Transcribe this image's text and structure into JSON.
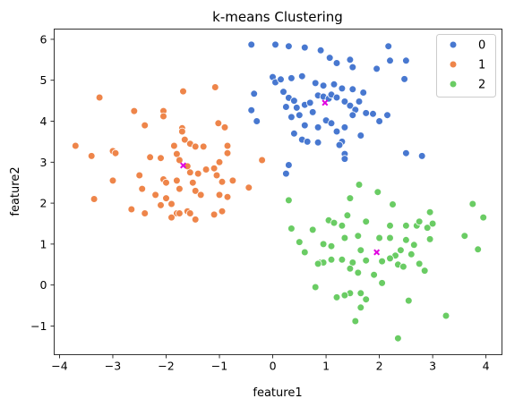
{
  "chart_data": {
    "type": "scatter",
    "title": "k-means Clustering",
    "xlabel": "feature1",
    "ylabel": "feature2",
    "xlim": [
      -4.1,
      4.3
    ],
    "ylim": [
      -1.7,
      6.25
    ],
    "xticks": [
      -4,
      -3,
      -2,
      -1,
      0,
      1,
      2,
      3,
      4
    ],
    "yticks": [
      -1,
      0,
      1,
      2,
      3,
      4,
      5,
      6
    ],
    "grid": false,
    "legend_position": "top-right",
    "centroid_color": "#e000e0",
    "series": [
      {
        "name": "0",
        "color": "#4878d0",
        "points": [
          [
            -0.4,
            5.87
          ],
          [
            0.05,
            5.87
          ],
          [
            0.3,
            5.83
          ],
          [
            0.6,
            5.8
          ],
          [
            0.9,
            5.73
          ],
          [
            1.07,
            5.55
          ],
          [
            1.2,
            5.42
          ],
          [
            1.45,
            5.5
          ],
          [
            1.5,
            5.32
          ],
          [
            2.17,
            5.83
          ],
          [
            2.2,
            5.48
          ],
          [
            2.5,
            5.48
          ],
          [
            1.95,
            5.28
          ],
          [
            0.0,
            5.08
          ],
          [
            0.05,
            4.95
          ],
          [
            0.15,
            5.02
          ],
          [
            0.35,
            5.05
          ],
          [
            0.55,
            5.1
          ],
          [
            0.8,
            4.93
          ],
          [
            0.95,
            4.87
          ],
          [
            1.15,
            4.9
          ],
          [
            1.3,
            4.8
          ],
          [
            1.5,
            4.78
          ],
          [
            1.7,
            4.7
          ],
          [
            2.47,
            5.03
          ],
          [
            -0.35,
            4.67
          ],
          [
            0.2,
            4.72
          ],
          [
            0.3,
            4.57
          ],
          [
            0.4,
            4.5
          ],
          [
            0.45,
            4.33
          ],
          [
            0.6,
            4.4
          ],
          [
            0.7,
            4.45
          ],
          [
            0.85,
            4.63
          ],
          [
            0.95,
            4.6
          ],
          [
            1.05,
            4.55
          ],
          [
            1.1,
            4.65
          ],
          [
            1.2,
            4.58
          ],
          [
            1.35,
            4.48
          ],
          [
            1.45,
            4.38
          ],
          [
            1.55,
            4.28
          ],
          [
            1.62,
            4.48
          ],
          [
            1.75,
            4.2
          ],
          [
            1.88,
            4.18
          ],
          [
            2.15,
            4.15
          ],
          [
            -0.4,
            4.27
          ],
          [
            -0.3,
            4.0
          ],
          [
            0.25,
            4.35
          ],
          [
            0.35,
            4.1
          ],
          [
            0.5,
            4.15
          ],
          [
            0.6,
            3.9
          ],
          [
            0.75,
            4.22
          ],
          [
            0.85,
            3.85
          ],
          [
            1.0,
            4.02
          ],
          [
            1.1,
            3.95
          ],
          [
            1.2,
            3.75
          ],
          [
            1.3,
            3.5
          ],
          [
            1.35,
            3.85
          ],
          [
            1.5,
            4.15
          ],
          [
            1.65,
            3.65
          ],
          [
            2.0,
            4.0
          ],
          [
            0.4,
            3.7
          ],
          [
            0.55,
            3.55
          ],
          [
            0.65,
            3.5
          ],
          [
            0.85,
            3.48
          ],
          [
            1.25,
            3.42
          ],
          [
            1.35,
            3.2
          ],
          [
            1.35,
            3.08
          ],
          [
            2.5,
            3.22
          ],
          [
            2.8,
            3.15
          ],
          [
            0.3,
            2.93
          ],
          [
            0.25,
            2.72
          ]
        ],
        "centroid": [
          0.98,
          4.45
        ]
      },
      {
        "name": "1",
        "color": "#ee854a",
        "points": [
          [
            -3.25,
            4.58
          ],
          [
            -1.68,
            4.73
          ],
          [
            -1.08,
            4.83
          ],
          [
            -2.6,
            4.25
          ],
          [
            -2.05,
            4.25
          ],
          [
            -2.05,
            4.12
          ],
          [
            -2.4,
            3.9
          ],
          [
            -1.7,
            3.83
          ],
          [
            -1.7,
            3.75
          ],
          [
            -1.02,
            3.95
          ],
          [
            -0.9,
            3.85
          ],
          [
            -3.7,
            3.4
          ],
          [
            -3.4,
            3.15
          ],
          [
            -3.0,
            3.27
          ],
          [
            -2.95,
            3.22
          ],
          [
            -1.85,
            3.4
          ],
          [
            -1.65,
            3.55
          ],
          [
            -1.55,
            3.45
          ],
          [
            -1.45,
            3.38
          ],
          [
            -1.3,
            3.38
          ],
          [
            -0.85,
            3.4
          ],
          [
            -0.85,
            3.22
          ],
          [
            -1.0,
            3.0
          ],
          [
            -1.1,
            2.85
          ],
          [
            -2.3,
            3.12
          ],
          [
            -2.1,
            3.1
          ],
          [
            -1.8,
            3.2
          ],
          [
            -1.75,
            3.05
          ],
          [
            -1.6,
            2.9
          ],
          [
            -1.55,
            2.75
          ],
          [
            -1.4,
            2.72
          ],
          [
            -0.2,
            3.05
          ],
          [
            -3.0,
            2.55
          ],
          [
            -2.5,
            2.68
          ],
          [
            -2.05,
            2.58
          ],
          [
            -2.0,
            2.5
          ],
          [
            -1.8,
            2.55
          ],
          [
            -1.5,
            2.5
          ],
          [
            -1.25,
            2.82
          ],
          [
            -1.05,
            2.68
          ],
          [
            -0.95,
            2.52
          ],
          [
            -0.75,
            2.55
          ],
          [
            -0.45,
            2.38
          ],
          [
            -2.45,
            2.35
          ],
          [
            -1.75,
            2.35
          ],
          [
            -1.45,
            2.3
          ],
          [
            -1.35,
            2.2
          ],
          [
            -1.0,
            2.2
          ],
          [
            -0.85,
            2.15
          ],
          [
            -2.2,
            2.2
          ],
          [
            -2.0,
            2.12
          ],
          [
            -3.35,
            2.1
          ],
          [
            -2.65,
            1.85
          ],
          [
            -2.4,
            1.75
          ],
          [
            -2.1,
            1.95
          ],
          [
            -1.9,
            1.98
          ],
          [
            -1.8,
            1.75
          ],
          [
            -1.75,
            1.75
          ],
          [
            -1.6,
            1.8
          ],
          [
            -1.55,
            1.75
          ],
          [
            -1.45,
            1.6
          ],
          [
            -1.9,
            1.65
          ],
          [
            -1.1,
            1.72
          ],
          [
            -0.95,
            1.8
          ]
        ],
        "centroid": [
          -1.68,
          2.92
        ]
      },
      {
        "name": "2",
        "color": "#6acc64",
        "points": [
          [
            1.62,
            2.45
          ],
          [
            1.97,
            2.27
          ],
          [
            0.3,
            2.07
          ],
          [
            1.45,
            2.12
          ],
          [
            2.25,
            1.97
          ],
          [
            3.75,
            1.98
          ],
          [
            3.95,
            1.65
          ],
          [
            2.95,
            1.78
          ],
          [
            1.05,
            1.58
          ],
          [
            1.15,
            1.52
          ],
          [
            1.3,
            1.45
          ],
          [
            1.4,
            1.7
          ],
          [
            1.75,
            1.55
          ],
          [
            2.2,
            1.45
          ],
          [
            2.5,
            1.45
          ],
          [
            2.7,
            1.45
          ],
          [
            2.75,
            1.55
          ],
          [
            2.9,
            1.4
          ],
          [
            3.0,
            1.5
          ],
          [
            3.6,
            1.2
          ],
          [
            3.85,
            0.87
          ],
          [
            2.95,
            1.12
          ],
          [
            0.35,
            1.38
          ],
          [
            0.75,
            1.35
          ],
          [
            0.95,
            1.0
          ],
          [
            1.1,
            0.95
          ],
          [
            1.35,
            1.15
          ],
          [
            1.6,
            1.2
          ],
          [
            2.0,
            1.15
          ],
          [
            2.2,
            1.15
          ],
          [
            2.5,
            1.1
          ],
          [
            2.65,
            0.98
          ],
          [
            2.4,
            0.85
          ],
          [
            2.3,
            0.72
          ],
          [
            2.6,
            0.75
          ],
          [
            0.5,
            1.05
          ],
          [
            0.6,
            0.8
          ],
          [
            0.9,
            0.55
          ],
          [
            0.95,
            0.55
          ],
          [
            1.1,
            0.62
          ],
          [
            1.3,
            0.62
          ],
          [
            1.5,
            0.55
          ],
          [
            1.65,
            0.85
          ],
          [
            1.75,
            0.6
          ],
          [
            2.05,
            0.58
          ],
          [
            2.2,
            0.65
          ],
          [
            2.35,
            0.5
          ],
          [
            2.45,
            0.45
          ],
          [
            2.75,
            0.52
          ],
          [
            2.85,
            0.35
          ],
          [
            0.85,
            0.52
          ],
          [
            1.45,
            0.4
          ],
          [
            1.6,
            0.3
          ],
          [
            1.9,
            0.25
          ],
          [
            2.05,
            0.05
          ],
          [
            1.45,
            -0.2
          ],
          [
            1.65,
            -0.2
          ],
          [
            1.75,
            -0.35
          ],
          [
            1.2,
            -0.3
          ],
          [
            1.35,
            -0.25
          ],
          [
            0.8,
            -0.05
          ],
          [
            1.65,
            -0.55
          ],
          [
            2.55,
            -0.38
          ],
          [
            3.25,
            -0.75
          ],
          [
            1.55,
            -0.88
          ],
          [
            2.35,
            -1.3
          ]
        ],
        "centroid": [
          1.95,
          0.8
        ]
      }
    ]
  }
}
